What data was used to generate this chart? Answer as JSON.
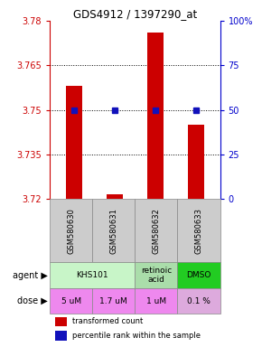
{
  "title": "GDS4912 / 1397290_at",
  "samples": [
    "GSM580630",
    "GSM580631",
    "GSM580632",
    "GSM580633"
  ],
  "bar_values": [
    3.758,
    3.7215,
    3.776,
    3.745
  ],
  "percentile_values": [
    3.75,
    3.75,
    3.75,
    3.75
  ],
  "ylim_left": [
    3.72,
    3.78
  ],
  "ylim_right": [
    0,
    100
  ],
  "yticks_left": [
    3.72,
    3.735,
    3.75,
    3.765,
    3.78
  ],
  "ytick_labels_left": [
    "3.72",
    "3.735",
    "3.75",
    "3.765",
    "3.78"
  ],
  "yticks_right": [
    0,
    25,
    50,
    75,
    100
  ],
  "ytick_labels_right": [
    "0",
    "25",
    "50",
    "75",
    "100%"
  ],
  "gridlines": [
    3.735,
    3.75,
    3.765
  ],
  "bar_color": "#cc0000",
  "dot_color": "#1111bb",
  "agent_defs": [
    {
      "label": "KHS101",
      "start": 0,
      "end": 1,
      "color": "#c8f5c8"
    },
    {
      "label": "retinoic\nacid",
      "start": 2,
      "end": 2,
      "color": "#aaddaa"
    },
    {
      "label": "DMSO",
      "start": 3,
      "end": 3,
      "color": "#22cc22"
    }
  ],
  "doses": [
    "5 uM",
    "1.7 uM",
    "1 uM",
    "0.1 %"
  ],
  "dose_colors": [
    "#ee88ee",
    "#ee88ee",
    "#ee88ee",
    "#ddaadd"
  ],
  "sample_bg_color": "#cccccc",
  "left_label_color": "#cc0000",
  "right_label_color": "#0000cc",
  "legend_bar_color": "#cc0000",
  "legend_dot_color": "#1111bb"
}
